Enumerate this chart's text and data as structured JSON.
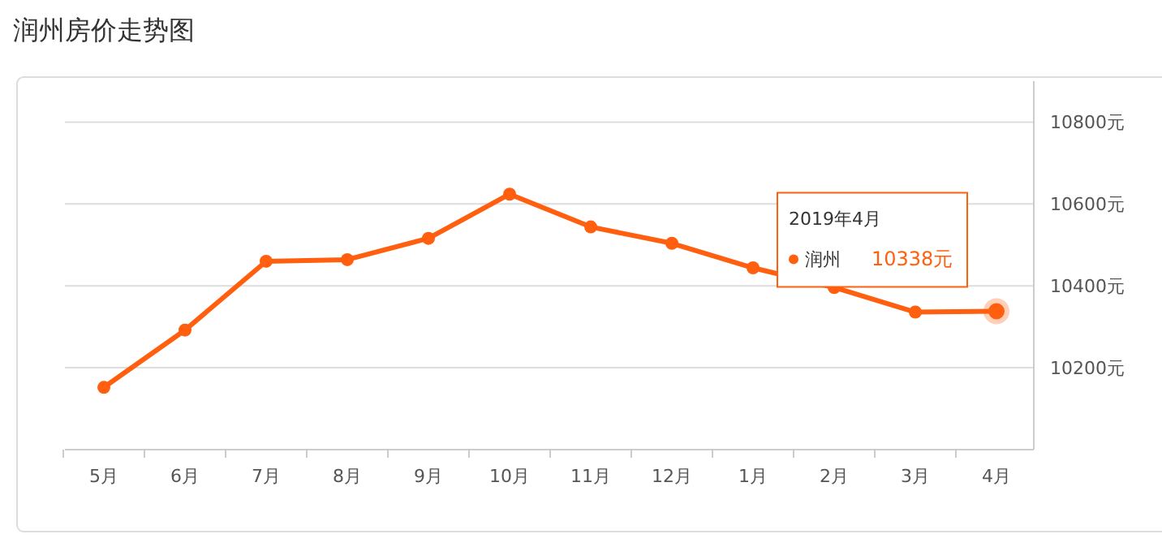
{
  "chart_data": {
    "type": "line",
    "title": "润州房价走势图",
    "categories": [
      "5月",
      "6月",
      "7月",
      "8月",
      "9月",
      "10月",
      "11月",
      "12月",
      "1月",
      "2月",
      "3月",
      "4月"
    ],
    "series": [
      {
        "name": "润州",
        "color": "#ff5f0f",
        "values": [
          10152,
          10292,
          10460,
          10464,
          10516,
          10624,
          10544,
          10504,
          10444,
          10396,
          10336,
          10338
        ],
        "value_labels": [
          null,
          null,
          null,
          null,
          null,
          null,
          null,
          null,
          null,
          null,
          null,
          "10338元"
        ]
      }
    ],
    "ylim": [
      10000,
      10900
    ],
    "yticks": [
      {
        "value": 10200,
        "label": "10200元"
      },
      {
        "value": 10400,
        "label": "10400元"
      },
      {
        "value": 10600,
        "label": "10600元"
      },
      {
        "value": 10800,
        "label": "10800元"
      }
    ],
    "grid": "y",
    "marker": "circle",
    "line_style": "solid",
    "annotations": [
      "2019年4月"
    ]
  }
}
